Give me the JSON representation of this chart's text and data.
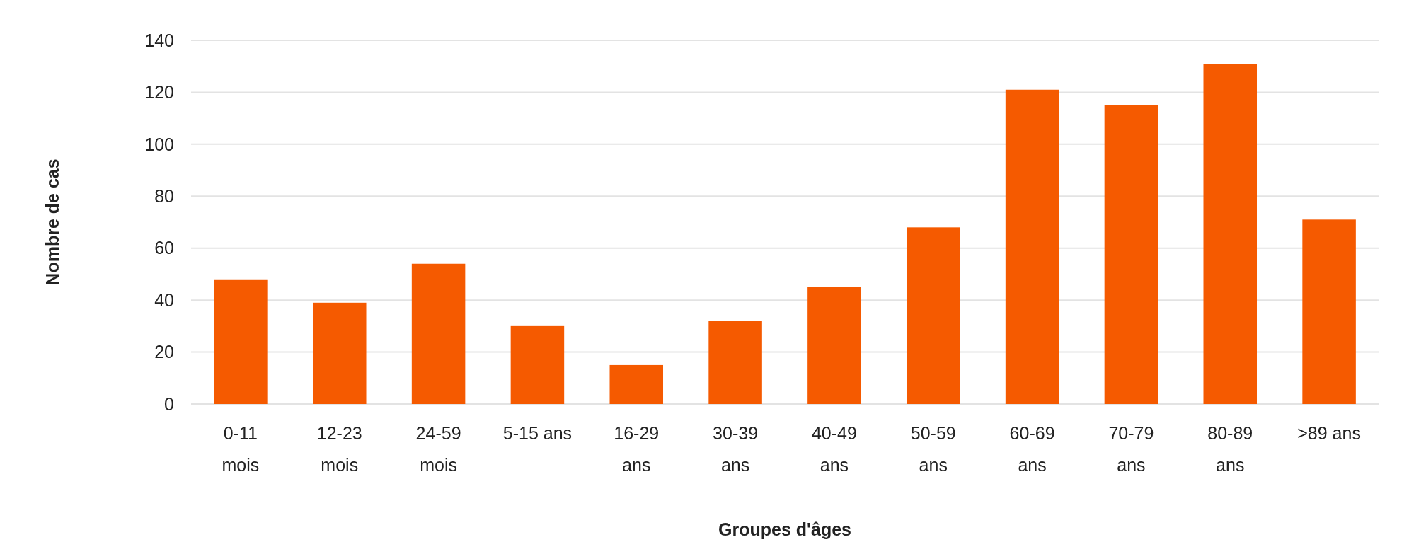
{
  "chart_data": {
    "type": "bar",
    "xlabel": "Groupes d'âges",
    "ylabel": "Nombre de cas",
    "categories": [
      "0-11 mois",
      "12-23 mois",
      "24-59 mois",
      "5-15 ans",
      "16-29 ans",
      "30-39 ans",
      "40-49 ans",
      "50-59 ans",
      "60-69 ans",
      "70-79 ans",
      "80-89 ans",
      ">89 ans"
    ],
    "values": [
      48,
      39,
      54,
      30,
      15,
      32,
      45,
      68,
      121,
      115,
      131,
      71
    ],
    "color": "#f55a00",
    "ylim": [
      0,
      140
    ],
    "yticks": [
      0,
      20,
      40,
      60,
      80,
      100,
      120,
      140
    ],
    "grid": "y"
  }
}
